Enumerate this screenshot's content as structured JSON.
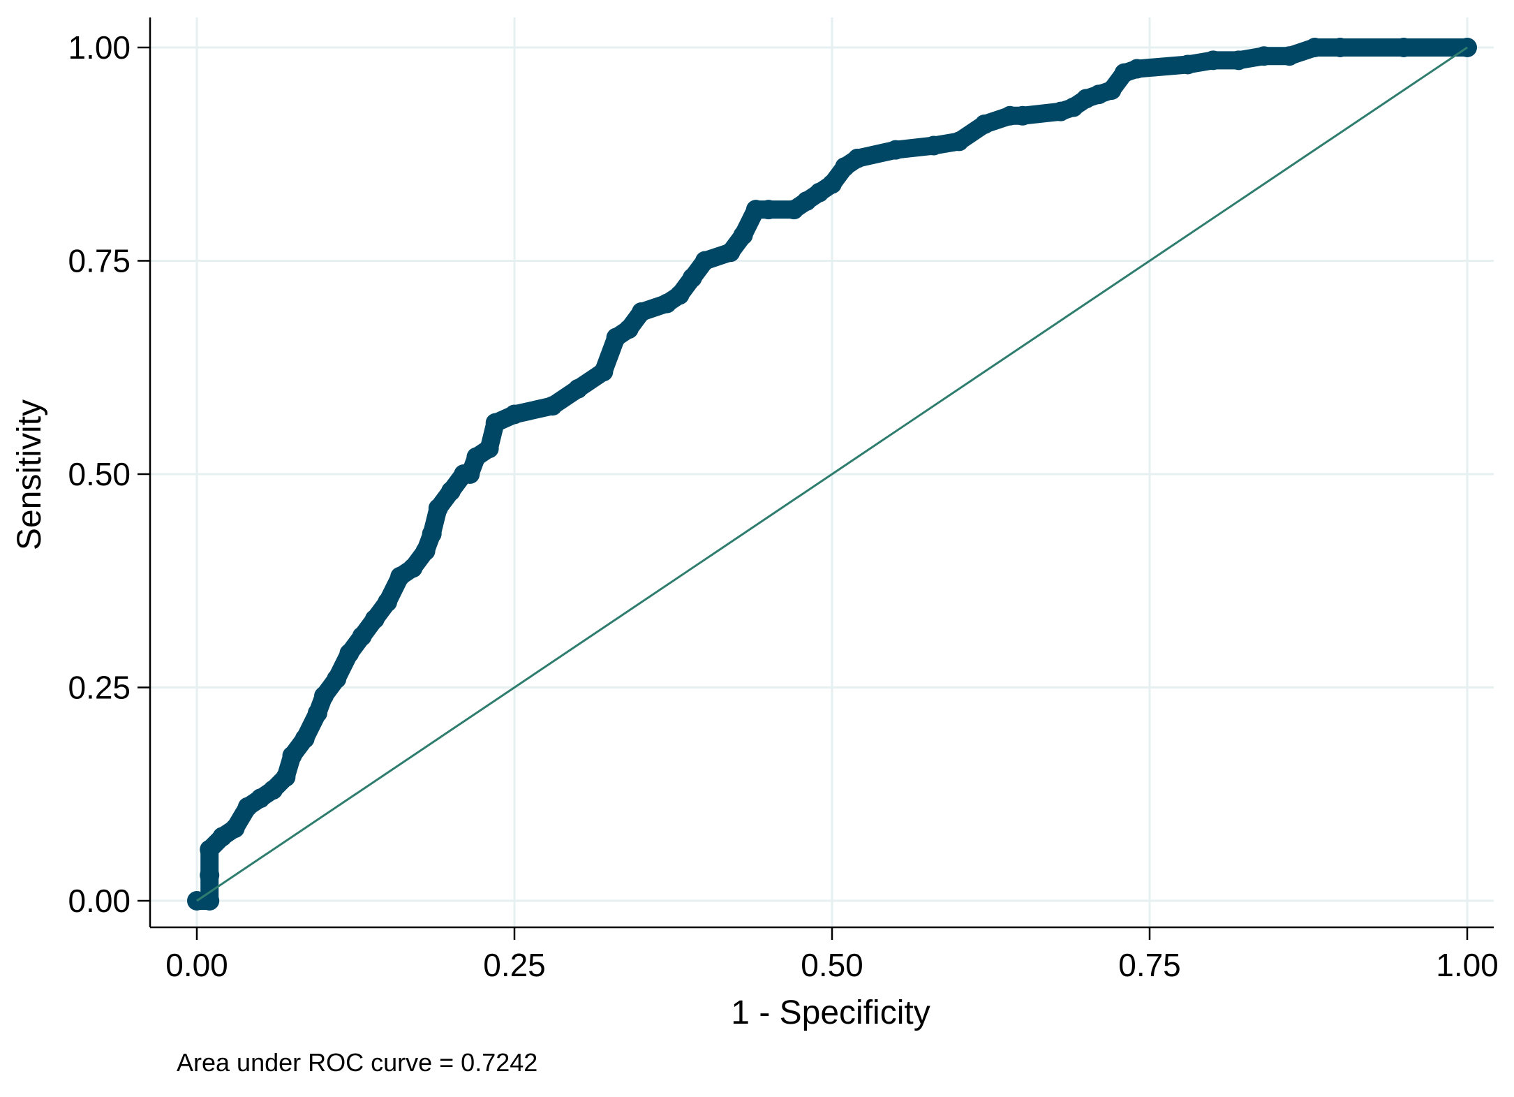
{
  "chart_data": {
    "type": "line",
    "xlabel": "1 - Specificity",
    "ylabel": "Sensitivity",
    "xlim": [
      0,
      1
    ],
    "ylim": [
      0,
      1
    ],
    "grid": true,
    "legend": "none",
    "x_ticks": [
      "0.00",
      "0.25",
      "0.50",
      "0.75",
      "1.00"
    ],
    "y_ticks": [
      "0.00",
      "0.25",
      "0.50",
      "0.75",
      "1.00"
    ],
    "annotation": "Area under ROC curve = 0.7242",
    "colors": {
      "roc": "#004766",
      "reference": "#2e7d6e",
      "grid": "#e6f0f0"
    },
    "series": [
      {
        "kind": "roc",
        "x": [
          0.0,
          0.01,
          0.01,
          0.01,
          0.02,
          0.03,
          0.04,
          0.05,
          0.06,
          0.07,
          0.075,
          0.085,
          0.095,
          0.1,
          0.11,
          0.12,
          0.13,
          0.14,
          0.15,
          0.16,
          0.17,
          0.18,
          0.185,
          0.19,
          0.2,
          0.21,
          0.215,
          0.22,
          0.23,
          0.235,
          0.25,
          0.28,
          0.3,
          0.32,
          0.33,
          0.34,
          0.35,
          0.37,
          0.38,
          0.39,
          0.4,
          0.42,
          0.43,
          0.44,
          0.45,
          0.47,
          0.48,
          0.49,
          0.5,
          0.51,
          0.52,
          0.55,
          0.58,
          0.6,
          0.62,
          0.64,
          0.65,
          0.68,
          0.69,
          0.7,
          0.71,
          0.72,
          0.73,
          0.74,
          0.78,
          0.8,
          0.82,
          0.84,
          0.86,
          0.88,
          0.9,
          0.95,
          1.0
        ],
        "y": [
          0.0,
          0.0,
          0.03,
          0.06,
          0.075,
          0.085,
          0.11,
          0.12,
          0.13,
          0.145,
          0.17,
          0.19,
          0.22,
          0.24,
          0.26,
          0.29,
          0.31,
          0.33,
          0.35,
          0.38,
          0.39,
          0.41,
          0.43,
          0.46,
          0.48,
          0.5,
          0.5,
          0.52,
          0.53,
          0.56,
          0.57,
          0.58,
          0.6,
          0.62,
          0.66,
          0.67,
          0.69,
          0.7,
          0.71,
          0.73,
          0.75,
          0.76,
          0.78,
          0.81,
          0.81,
          0.81,
          0.82,
          0.83,
          0.84,
          0.86,
          0.87,
          0.88,
          0.885,
          0.89,
          0.91,
          0.92,
          0.92,
          0.925,
          0.93,
          0.94,
          0.945,
          0.95,
          0.97,
          0.975,
          0.98,
          0.985,
          0.985,
          0.99,
          0.99,
          1.0,
          1.0,
          1.0,
          1.0
        ]
      },
      {
        "kind": "reference",
        "x": [
          0,
          1
        ],
        "y": [
          0,
          1
        ]
      }
    ]
  }
}
